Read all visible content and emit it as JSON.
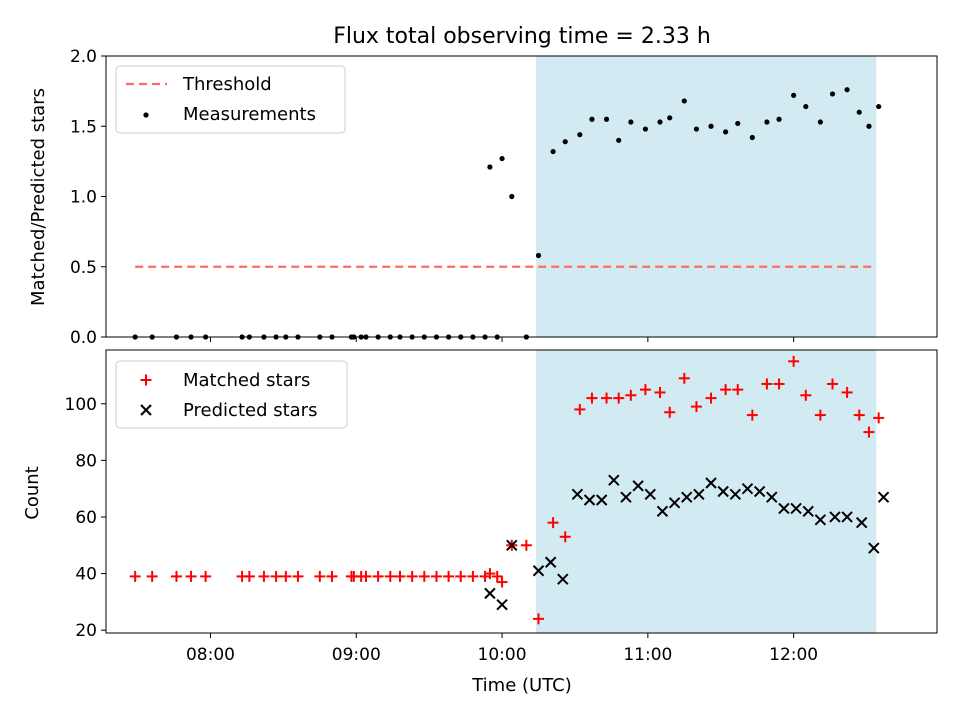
{
  "chart_data": [
    {
      "type": "scatter",
      "title": "Flux total observing time = 2.33 h",
      "xlabel": "",
      "ylabel": "Matched/Predicted stars",
      "xlim": [
        "07:17",
        "12:59"
      ],
      "ylim": [
        0,
        2.0
      ],
      "yticks": [
        "0.0",
        "0.5",
        "1.0",
        "1.5",
        "2.0"
      ],
      "legend_position": "top-left",
      "highlight_span": {
        "from": "10:14",
        "to": "12:34",
        "color": "#add8e6"
      },
      "threshold": {
        "name": "Threshold",
        "value": 0.5,
        "from": "07:29",
        "to": "12:34",
        "color": "#ff6b6b",
        "style": "dashed"
      },
      "series": [
        {
          "name": "Measurements",
          "color": "#000000",
          "marker": "dot",
          "x": [
            "07:29",
            "07:36",
            "07:46",
            "07:52",
            "07:58",
            "08:13",
            "08:16",
            "08:22",
            "08:27",
            "08:31",
            "08:36",
            "08:45",
            "08:50",
            "08:58",
            "08:59",
            "09:02",
            "09:04",
            "09:09",
            "09:14",
            "09:18",
            "09:23",
            "09:28",
            "09:33",
            "09:38",
            "09:43",
            "09:48",
            "09:53",
            "09:58",
            "09:55",
            "10:00",
            "10:04",
            "10:10",
            "10:15",
            "10:21",
            "10:26",
            "10:32",
            "10:37",
            "10:43",
            "10:48",
            "10:53",
            "10:59",
            "11:05",
            "11:09",
            "11:15",
            "11:20",
            "11:26",
            "11:32",
            "11:37",
            "11:43",
            "11:49",
            "11:54",
            "12:00",
            "12:05",
            "12:11",
            "12:16",
            "12:22",
            "12:27",
            "12:31",
            "12:35"
          ],
          "y": [
            0,
            0,
            0,
            0,
            0,
            0,
            0,
            0,
            0,
            0,
            0,
            0,
            0,
            0,
            0,
            0,
            0,
            0,
            0,
            0,
            0,
            0,
            0,
            0,
            0,
            0,
            0,
            0,
            1.21,
            1.27,
            1.0,
            0,
            0.58,
            1.32,
            1.39,
            1.44,
            1.55,
            1.55,
            1.4,
            1.53,
            1.48,
            1.53,
            1.56,
            1.68,
            1.48,
            1.5,
            1.46,
            1.52,
            1.42,
            1.53,
            1.55,
            1.72,
            1.64,
            1.53,
            1.73,
            1.76,
            1.6,
            1.5,
            1.64
          ]
        }
      ]
    },
    {
      "type": "scatter",
      "title": "",
      "xlabel": "Time (UTC)",
      "ylabel": "Count",
      "xlim": [
        "07:17",
        "12:59"
      ],
      "ylim": [
        19,
        119
      ],
      "yticks": [
        "20",
        "40",
        "60",
        "80",
        "100"
      ],
      "xticks": [
        "08:00",
        "09:00",
        "10:00",
        "11:00",
        "12:00"
      ],
      "legend_position": "top-left",
      "highlight_span": {
        "from": "10:14",
        "to": "12:34",
        "color": "#add8e6"
      },
      "series": [
        {
          "name": "Matched stars",
          "color": "#ff0000",
          "marker": "plus",
          "x": [
            "07:29",
            "07:36",
            "07:46",
            "07:52",
            "07:58",
            "08:13",
            "08:16",
            "08:22",
            "08:27",
            "08:31",
            "08:36",
            "08:45",
            "08:50",
            "08:58",
            "08:59",
            "09:02",
            "09:04",
            "09:09",
            "09:14",
            "09:18",
            "09:23",
            "09:28",
            "09:33",
            "09:38",
            "09:43",
            "09:48",
            "09:53",
            "09:58",
            "09:55",
            "10:00",
            "10:04",
            "10:10",
            "10:15",
            "10:21",
            "10:26",
            "10:32",
            "10:37",
            "10:43",
            "10:48",
            "10:53",
            "10:59",
            "11:05",
            "11:09",
            "11:15",
            "11:20",
            "11:26",
            "11:32",
            "11:37",
            "11:43",
            "11:49",
            "11:54",
            "12:00",
            "12:05",
            "12:11",
            "12:16",
            "12:22",
            "12:27",
            "12:31",
            "12:35"
          ],
          "y": [
            39,
            39,
            39,
            39,
            39,
            39,
            39,
            39,
            39,
            39,
            39,
            39,
            39,
            39,
            39,
            39,
            39,
            39,
            39,
            39,
            39,
            39,
            39,
            39,
            39,
            39,
            39,
            39,
            40,
            37,
            50,
            50,
            24,
            58,
            53,
            98,
            102,
            102,
            102,
            103,
            105,
            104,
            97,
            109,
            99,
            102,
            105,
            105,
            96,
            107,
            107,
            115,
            103,
            96,
            107,
            104,
            96,
            90,
            95
          ]
        },
        {
          "name": "Predicted stars",
          "color": "#000000",
          "marker": "x",
          "x": [
            "09:55",
            "10:00",
            "10:04",
            "10:15",
            "10:20",
            "10:25",
            "10:31",
            "10:36",
            "10:41",
            "10:46",
            "10:51",
            "10:56",
            "11:01",
            "11:06",
            "11:11",
            "11:16",
            "11:21",
            "11:26",
            "11:31",
            "11:36",
            "11:41",
            "11:46",
            "11:51",
            "11:56",
            "12:01",
            "12:06",
            "12:11",
            "12:17",
            "12:22",
            "12:28",
            "12:33",
            "12:37"
          ],
          "y": [
            33,
            29,
            50,
            41,
            44,
            38,
            68,
            66,
            66,
            73,
            67,
            71,
            68,
            62,
            65,
            67,
            68,
            72,
            69,
            68,
            70,
            69,
            67,
            63,
            63,
            62,
            59,
            60,
            60,
            58,
            49,
            67
          ]
        }
      ]
    }
  ]
}
